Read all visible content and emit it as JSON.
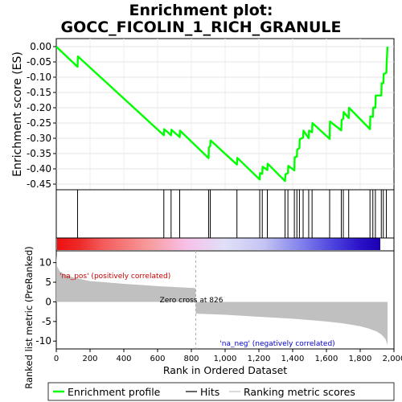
{
  "chart_data": [
    {
      "type": "line",
      "title_line1": "Enrichment plot:",
      "title_line2": "GOCC_FICOLIN_1_RICH_GRANULE",
      "ylabel": "Enrichment score (ES)",
      "xlim": [
        0,
        2000
      ],
      "ylim": [
        -0.45,
        0.0
      ],
      "yticks": [
        0.0,
        -0.05,
        -0.1,
        -0.15,
        -0.2,
        -0.25,
        -0.3,
        -0.35,
        -0.4,
        -0.45
      ],
      "ytick_labels": [
        "0.00",
        "-0.05",
        "-0.10",
        "-0.15",
        "-0.20",
        "-0.25",
        "-0.30",
        "-0.35",
        "-0.40",
        "-0.45"
      ],
      "series": [
        {
          "name": "Enrichment profile",
          "color": "#00ff00",
          "x": [
            0,
            126,
            128,
            637,
            639,
            680,
            682,
            731,
            733,
            902,
            904,
            912,
            914,
            1070,
            1072,
            1205,
            1207,
            1220,
            1222,
            1250,
            1252,
            1355,
            1357,
            1372,
            1374,
            1410,
            1412,
            1425,
            1427,
            1440,
            1442,
            1462,
            1464,
            1495,
            1497,
            1515,
            1517,
            1619,
            1621,
            1688,
            1690,
            1700,
            1702,
            1732,
            1734,
            1858,
            1860,
            1875,
            1877,
            1890,
            1892,
            1925,
            1927,
            1937,
            1939,
            1955,
            1957,
            1962
          ],
          "y": [
            0.0,
            -0.066,
            -0.032,
            -0.29,
            -0.27,
            -0.29,
            -0.272,
            -0.296,
            -0.275,
            -0.365,
            -0.33,
            -0.325,
            -0.307,
            -0.386,
            -0.364,
            -0.435,
            -0.414,
            -0.416,
            -0.393,
            -0.404,
            -0.383,
            -0.44,
            -0.418,
            -0.414,
            -0.39,
            -0.405,
            -0.362,
            -0.36,
            -0.337,
            -0.332,
            -0.303,
            -0.298,
            -0.275,
            -0.3,
            -0.275,
            -0.28,
            -0.25,
            -0.302,
            -0.245,
            -0.274,
            -0.24,
            -0.236,
            -0.214,
            -0.234,
            -0.2,
            -0.27,
            -0.228,
            -0.23,
            -0.2,
            -0.2,
            -0.16,
            -0.16,
            -0.12,
            -0.12,
            -0.09,
            -0.085,
            -0.05,
            0.0
          ]
        }
      ],
      "hits": [
        126,
        637,
        680,
        731,
        902,
        912,
        1070,
        1205,
        1220,
        1250,
        1355,
        1372,
        1410,
        1425,
        1440,
        1462,
        1495,
        1515,
        1619,
        1688,
        1700,
        1732,
        1858,
        1875,
        1890,
        1925,
        1937,
        1955
      ]
    },
    {
      "type": "area",
      "ylabel": "Ranked list metric (PreRanked)",
      "xlabel": "Rank in Ordered Dataset",
      "xlim": [
        0,
        2000
      ],
      "ylim": [
        -12,
        13
      ],
      "yticks": [
        10,
        5,
        0,
        -5,
        -10
      ],
      "ytick_labels": [
        "10",
        "5",
        "0",
        "-5",
        "-10"
      ],
      "xticks": [
        0,
        200,
        400,
        600,
        800,
        1000,
        1200,
        1400,
        1600,
        1800,
        2000
      ],
      "xtick_labels": [
        "0",
        "200",
        "400",
        "600",
        "800",
        "1,000",
        "1,200",
        "1,400",
        "1,600",
        "1,800",
        "2,000"
      ],
      "zero_cross": 826,
      "zero_cross_label": "Zero cross at 826",
      "pos_label": "'na_pos' (positively correlated)",
      "neg_label": "'na_neg' (negatively correlated)",
      "fill_color": "#c0c0c0",
      "x": [
        0,
        5,
        20,
        50,
        100,
        200,
        400,
        600,
        825,
        827,
        1000,
        1200,
        1400,
        1600,
        1700,
        1800,
        1850,
        1900,
        1930,
        1950,
        1962
      ],
      "y": [
        12.0,
        9.0,
        7.8,
        7.0,
        6.2,
        5.3,
        4.6,
        4.0,
        3.5,
        -3.0,
        -3.3,
        -3.8,
        -4.3,
        -5.0,
        -5.5,
        -6.2,
        -6.8,
        -7.6,
        -8.5,
        -9.5,
        -11.0
      ]
    }
  ],
  "legend": [
    {
      "label": "Enrichment profile",
      "color": "#00ff00"
    },
    {
      "label": "Hits",
      "color": "#000000"
    },
    {
      "label": "Ranking metric scores",
      "color": "#c0c0c0"
    }
  ]
}
